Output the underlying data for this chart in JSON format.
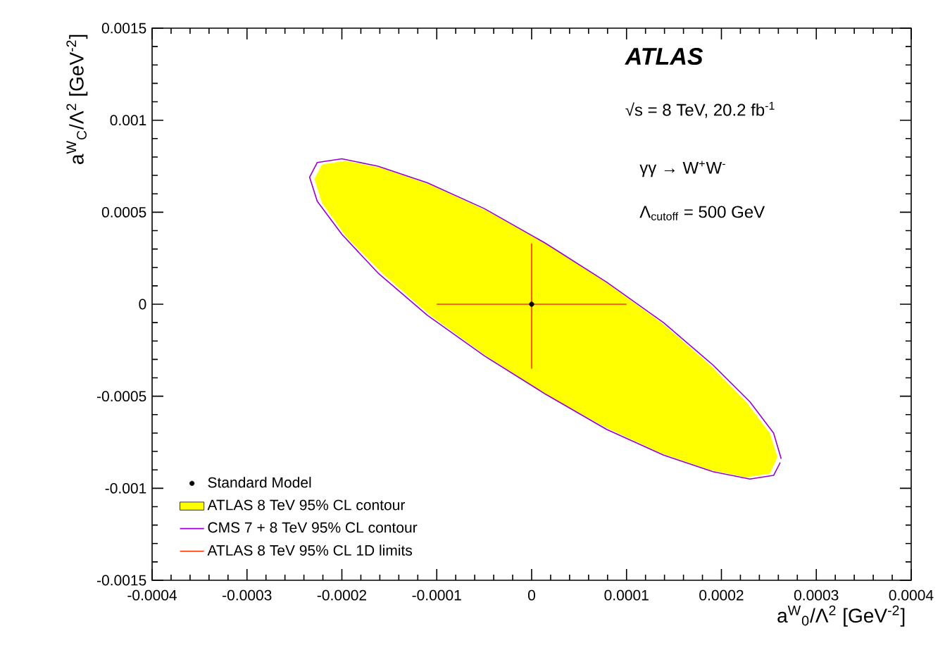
{
  "chart_data": {
    "type": "line",
    "xlabel": "a$^{W}$$_{0}$/Λ$^{2}$ [GeV$^{-2}$]",
    "ylabel": "a$^{W}$$_{C}$/Λ$^{2}$ [GeV$^{-2}$]",
    "annotations": [
      "ATLAS",
      "√s = 8 TeV, 20.2 fb$^{-1}$",
      "γγ → W$^{+}$W$^{-}$",
      "Λ$_{cutoff}$ = 500 GeV"
    ],
    "xlim": [
      -0.0004,
      0.0004
    ],
    "ylim": [
      -0.0015,
      0.0015
    ],
    "xticks": [
      -0.0004,
      -0.0003,
      -0.0002,
      -0.0001,
      0,
      0.0001,
      0.0002,
      0.0003,
      0.0004
    ],
    "yticks": [
      -0.0015,
      -0.001,
      -0.0005,
      0,
      0.0005,
      0.001,
      0.0015
    ],
    "grid": false,
    "legend": "bottom left",
    "series": [
      {
        "name": "Standard Model",
        "type": "scatter",
        "marker": "circle",
        "color": "#000000",
        "x": [
          0
        ],
        "values": [
          0
        ]
      },
      {
        "name": "ATLAS 8 TeV 95% CL contour",
        "type": "area",
        "color": "#ffff00",
        "x": [
          0.000259,
          0.000251,
          0.000226,
          0.000188,
          0.000137,
          7.8e-05,
          1.5e-05,
          -4.8e-05,
          -0.000107,
          -0.000158,
          -0.000196,
          -0.000221,
          -0.000229,
          -0.000221,
          -0.000196,
          -0.000158,
          -0.000107,
          -4.8e-05,
          1.5e-05,
          7.8e-05,
          0.000137,
          0.000188,
          0.000226,
          0.000251,
          0.000259
        ],
        "values": [
          -0.00083,
          -0.0007,
          -0.00053,
          -0.00033,
          -0.0001,
          0.00012,
          0.00033,
          0.00051,
          0.00065,
          0.00074,
          0.00078,
          0.00076,
          0.00068,
          0.00055,
          0.00037,
          0.00017,
          -6e-05,
          -0.00028,
          -0.00049,
          -0.00067,
          -0.00081,
          -0.0009,
          -0.00094,
          -0.00092,
          -0.00083
        ]
      },
      {
        "name": "CMS 7 + 8 TeV 95% CL contour",
        "color": "#9900cc",
        "x": [
          0.000263,
          0.000255,
          0.00023,
          0.000191,
          0.000139,
          7.9e-05,
          1.5e-05,
          -5e-05,
          -0.00011,
          -0.000162,
          -0.0002,
          -0.000226,
          -0.000234,
          -0.000226,
          -0.0002,
          -0.000162,
          -0.00011,
          -5e-05,
          1.5e-05,
          7.9e-05,
          0.000139,
          0.000191,
          0.00023,
          0.000255,
          0.000262
        ],
        "values": [
          -0.00084,
          -0.0007,
          -0.00053,
          -0.00033,
          -0.0001,
          0.00012,
          0.00033,
          0.00052,
          0.00066,
          0.00075,
          0.00079,
          0.00077,
          0.00069,
          0.00056,
          0.00038,
          0.00017,
          -6e-05,
          -0.00028,
          -0.00049,
          -0.00068,
          -0.00082,
          -0.00091,
          -0.00095,
          -0.00093,
          -0.00086
        ]
      },
      {
        "name": "ATLAS 8 TeV 95% CL 1D limits",
        "color": "#ff3300",
        "x": [
          -0.0001,
          0.0001
        ],
        "values": [
          0,
          0
        ]
      },
      {
        "color": "#ff3300",
        "x": [
          0,
          0
        ],
        "values": [
          0.00033,
          -0.00035
        ]
      }
    ]
  }
}
